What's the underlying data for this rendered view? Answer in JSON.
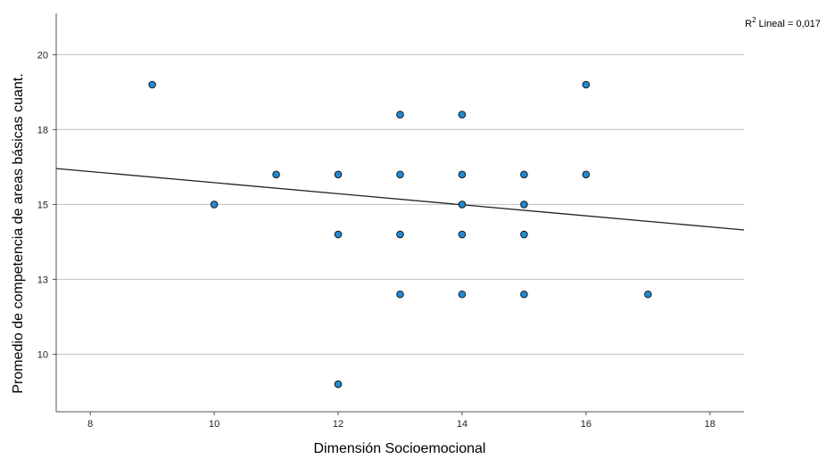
{
  "chart_data": {
    "type": "scatter",
    "title": "",
    "xlabel": "Dimensión Socioemocional",
    "ylabel": "Promedio de competencia de areas básicas cuant.",
    "xlim": [
      7.45,
      18.55
    ],
    "ylim": [
      8.08,
      21.38
    ],
    "x_ticks": [
      8,
      10,
      12,
      14,
      16,
      18
    ],
    "x_tick_labels": [
      "8",
      "10",
      "12",
      "14",
      "16",
      "18"
    ],
    "y_ticks": [
      10,
      12.5,
      15,
      17.5,
      20
    ],
    "y_tick_labels": [
      "10",
      "13",
      "15",
      "18",
      "20"
    ],
    "grid": "horizontal",
    "points": [
      {
        "x": 9,
        "y": 19
      },
      {
        "x": 10,
        "y": 15
      },
      {
        "x": 11,
        "y": 16
      },
      {
        "x": 12,
        "y": 16
      },
      {
        "x": 12,
        "y": 14
      },
      {
        "x": 12,
        "y": 9
      },
      {
        "x": 13,
        "y": 18
      },
      {
        "x": 13,
        "y": 16
      },
      {
        "x": 13,
        "y": 14
      },
      {
        "x": 13,
        "y": 12
      },
      {
        "x": 14,
        "y": 18
      },
      {
        "x": 14,
        "y": 16
      },
      {
        "x": 14,
        "y": 15
      },
      {
        "x": 14,
        "y": 14
      },
      {
        "x": 14,
        "y": 12
      },
      {
        "x": 15,
        "y": 16
      },
      {
        "x": 15,
        "y": 15
      },
      {
        "x": 15,
        "y": 14
      },
      {
        "x": 15,
        "y": 12
      },
      {
        "x": 16,
        "y": 19
      },
      {
        "x": 16,
        "y": 16
      },
      {
        "x": 17,
        "y": 12
      }
    ],
    "fit_line": {
      "type": "linear",
      "x": [
        7.45,
        18.55
      ],
      "y": [
        16.2,
        14.15
      ]
    },
    "r2_label": "R² Lineal = 0,017",
    "colors": {
      "point_fill": "#1f8ad6",
      "point_stroke": "#1a1a1a",
      "grid": "#c8c8c8",
      "axis": "#555555",
      "fit_line": "#222222"
    }
  }
}
